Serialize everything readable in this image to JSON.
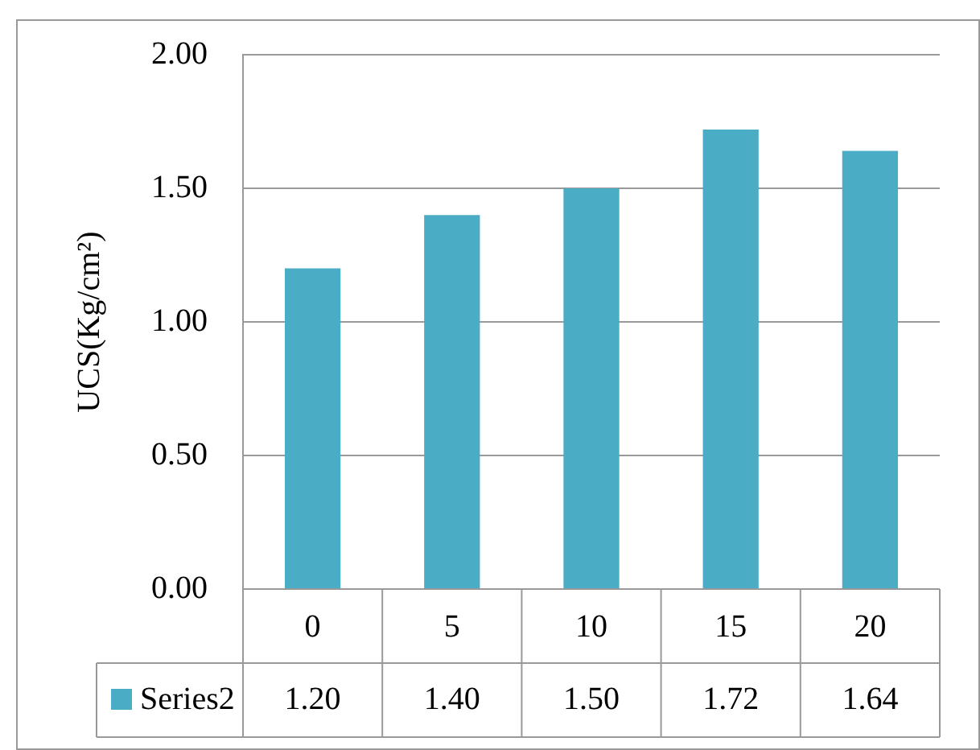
{
  "chart_data": {
    "type": "bar",
    "ylabel": "UCS(Kg/cm²)",
    "categories": [
      "0",
      "5",
      "10",
      "15",
      "20"
    ],
    "series": [
      {
        "name": "Series2",
        "color": "#4bacc6",
        "values": [
          1.2,
          1.4,
          1.5,
          1.72,
          1.64
        ],
        "value_labels": [
          "1.20",
          "1.40",
          "1.50",
          "1.72",
          "1.64"
        ]
      }
    ],
    "ylim": [
      0,
      2
    ],
    "yticks": [
      {
        "value": 0,
        "label": "0.00"
      },
      {
        "value": 0.5,
        "label": "0.50"
      },
      {
        "value": 1,
        "label": "1.00"
      },
      {
        "value": 1.5,
        "label": "1.50"
      },
      {
        "value": 2,
        "label": "2.00"
      }
    ],
    "grid": "y",
    "legend": "bottom"
  }
}
